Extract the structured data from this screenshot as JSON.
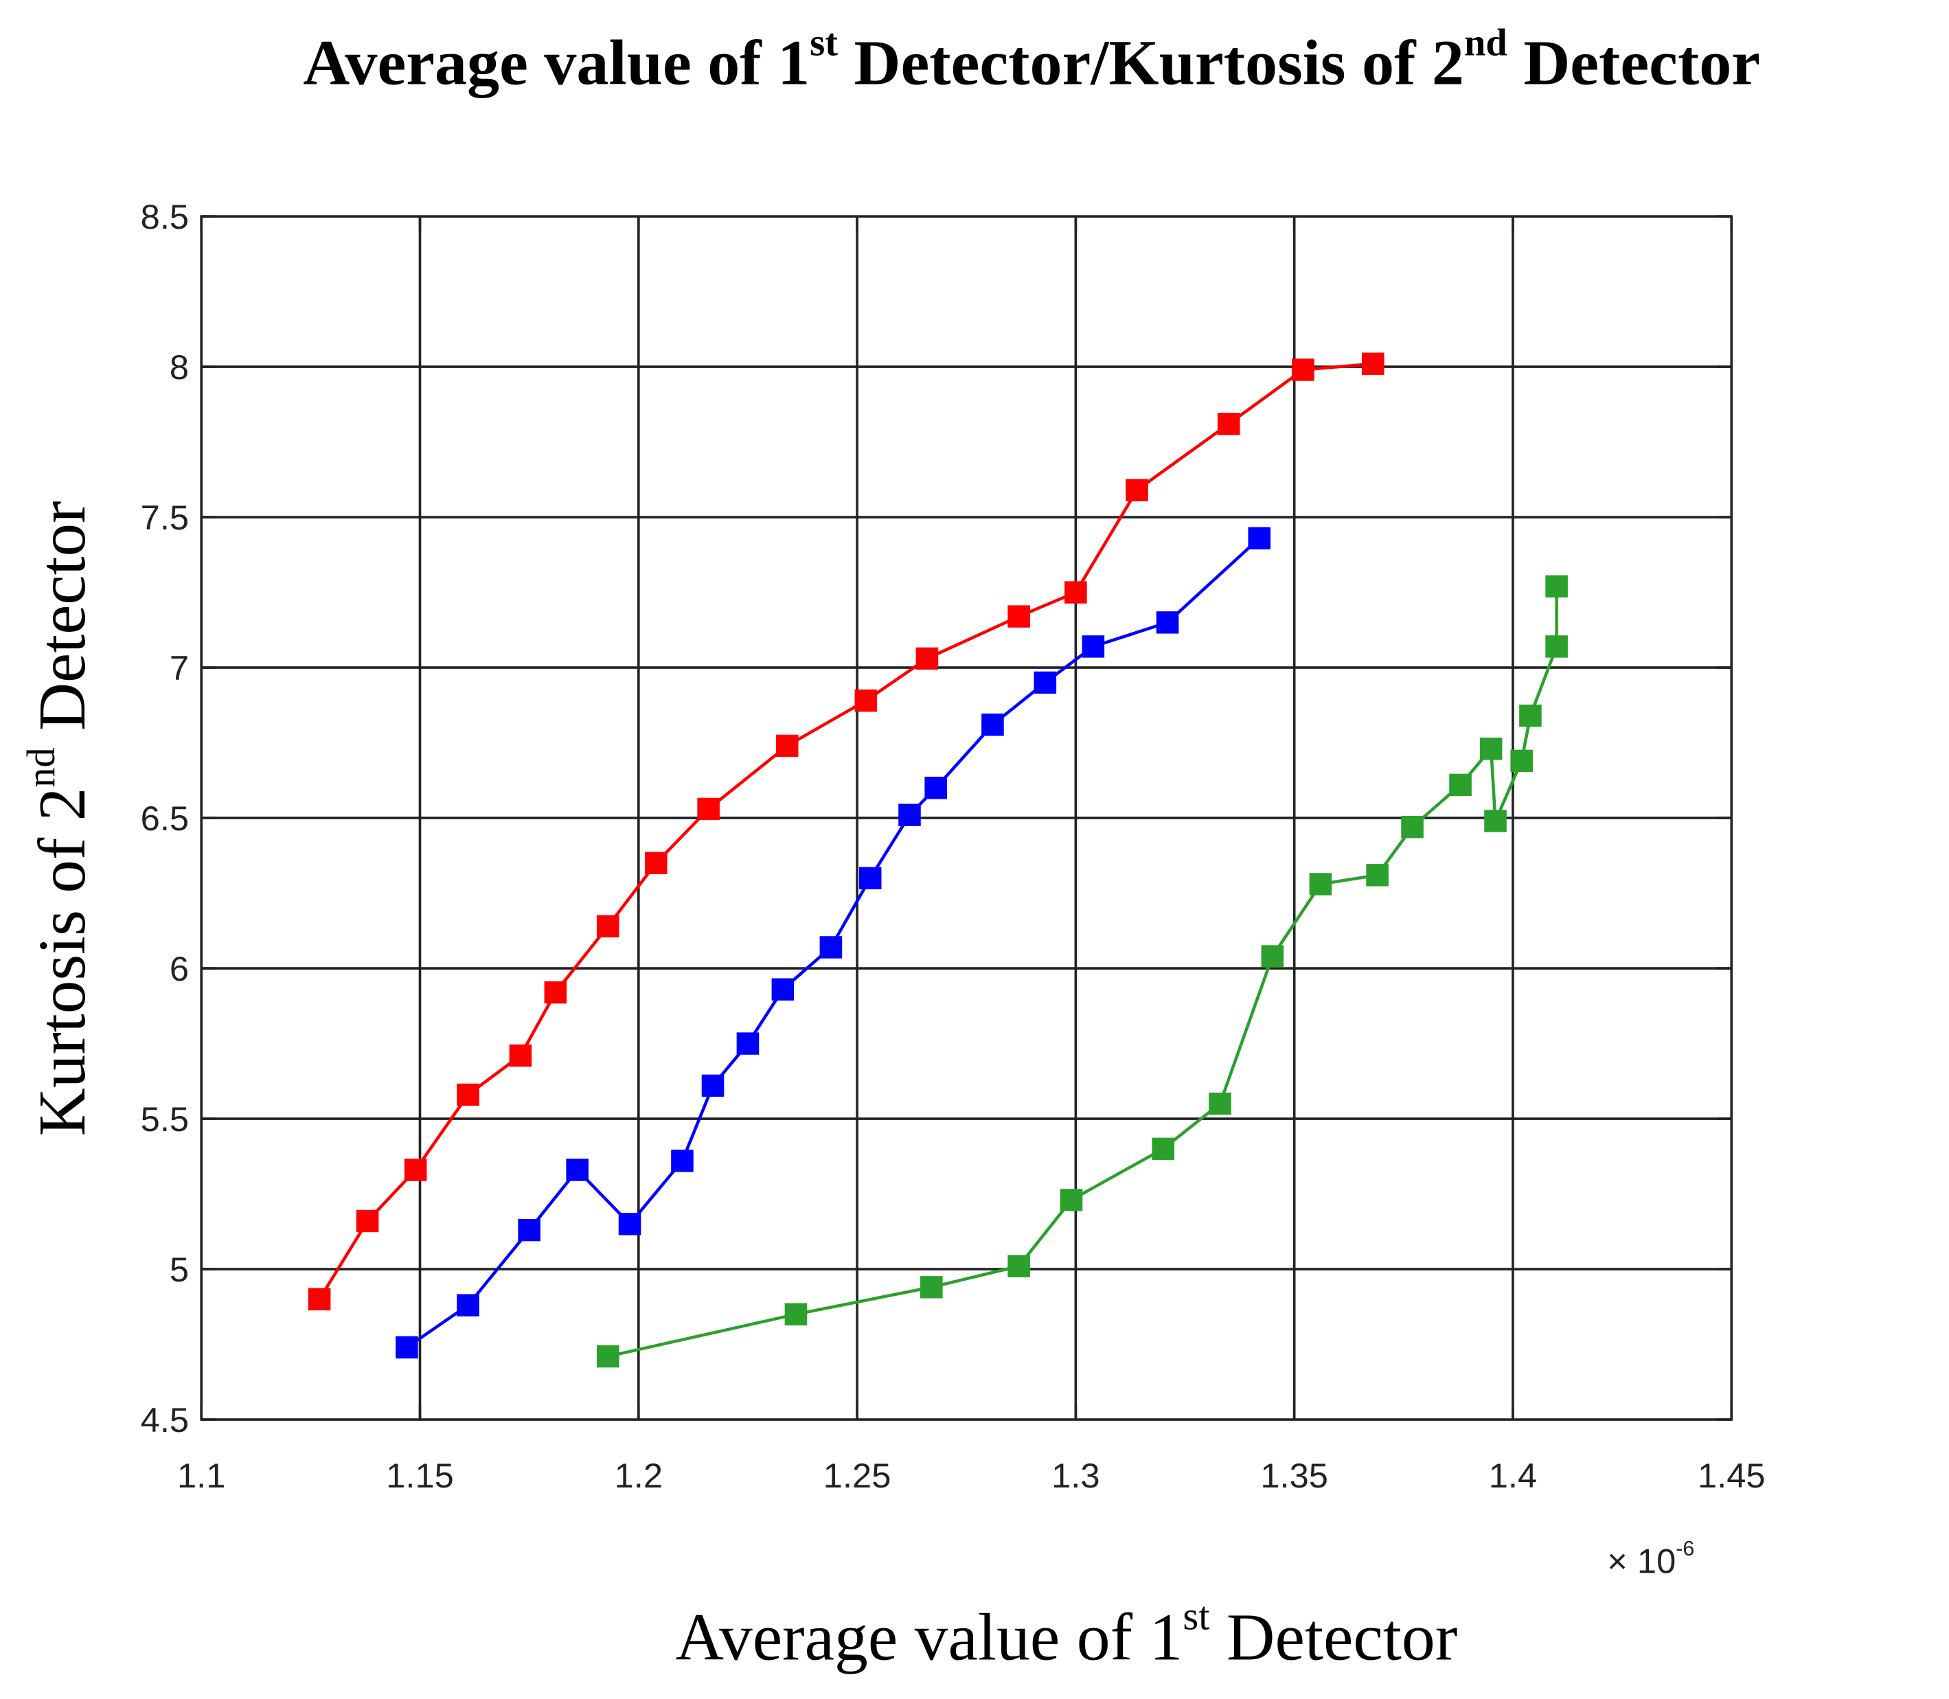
{
  "chart_data": {
    "type": "line",
    "title": [
      "Average value of 1",
      "st",
      " Detector/Kurtosis of 2",
      "nd",
      " Detector"
    ],
    "x_label": [
      "Average value of 1",
      "st",
      " Detector"
    ],
    "y_label": [
      "Kurtosis of 2",
      "nd",
      " Detector"
    ],
    "x_multiplier": [
      "× 10",
      "-6"
    ],
    "xlim": [
      1.1,
      1.45
    ],
    "xticks": [
      1.1,
      1.15,
      1.2,
      1.25,
      1.3,
      1.35,
      1.4,
      1.45
    ],
    "ylim": [
      4.5,
      8.5
    ],
    "yticks": [
      4.5,
      5,
      5.5,
      6,
      6.5,
      7,
      7.5,
      8,
      8.5
    ],
    "grid": true,
    "series": [
      {
        "color": "#ff0000",
        "x": [
          1.127,
          1.138,
          1.149,
          1.161,
          1.173,
          1.181,
          1.193,
          1.204,
          1.216,
          1.234,
          1.252,
          1.266,
          1.287,
          1.3,
          1.314,
          1.335,
          1.352,
          1.368
        ],
        "values": [
          4.9,
          5.16,
          5.33,
          5.58,
          5.71,
          5.92,
          6.14,
          6.35,
          6.53,
          6.74,
          6.89,
          7.03,
          7.17,
          7.25,
          7.59,
          7.81,
          7.99,
          8.01
        ]
      },
      {
        "color": "#0000ff",
        "x": [
          1.147,
          1.161,
          1.175,
          1.186,
          1.198,
          1.21,
          1.217,
          1.225,
          1.233,
          1.244,
          1.253,
          1.262,
          1.268,
          1.281,
          1.293,
          1.304,
          1.321,
          1.342
        ],
        "values": [
          4.74,
          4.88,
          5.13,
          5.33,
          5.15,
          5.36,
          5.61,
          5.75,
          5.93,
          6.07,
          6.3,
          6.51,
          6.6,
          6.81,
          6.95,
          7.07,
          7.15,
          7.43
        ]
      },
      {
        "color": "#2ca02c",
        "x": [
          1.193,
          1.236,
          1.267,
          1.287,
          1.299,
          1.32,
          1.333,
          1.345,
          1.356,
          1.369,
          1.377,
          1.388,
          1.395,
          1.396,
          1.402,
          1.404,
          1.41,
          1.41
        ],
        "values": [
          4.71,
          4.85,
          4.94,
          5.01,
          5.23,
          5.4,
          5.55,
          6.04,
          6.28,
          6.31,
          6.47,
          6.61,
          6.73,
          6.49,
          6.69,
          6.84,
          7.07,
          7.27
        ]
      }
    ]
  }
}
